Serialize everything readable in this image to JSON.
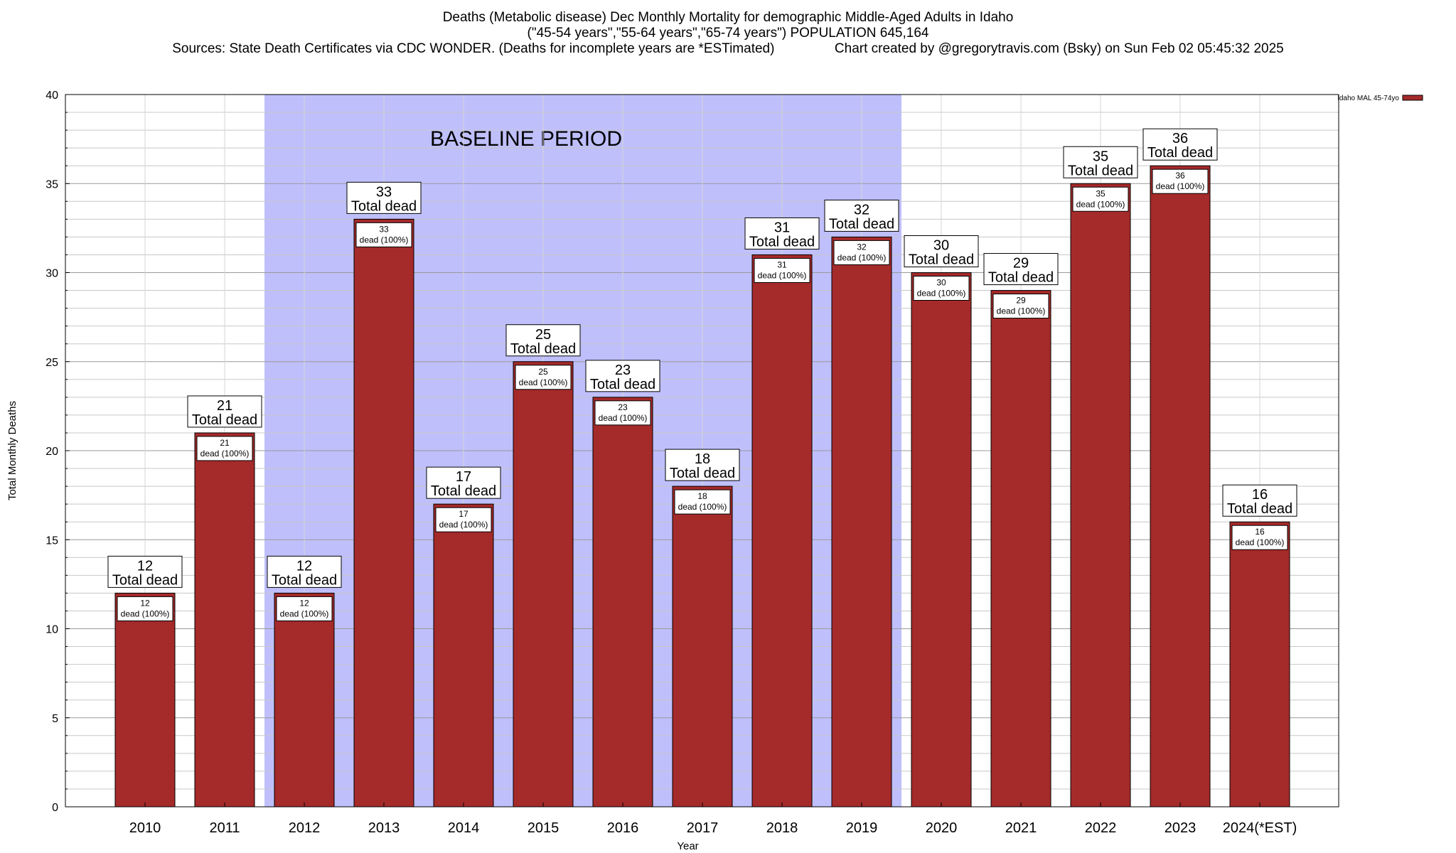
{
  "header": {
    "title_line1": "Deaths (Metabolic disease) Dec Monthly Mortality for demographic Middle-Aged Adults in Idaho",
    "title_line2": "(\"45-54 years\",\"55-64 years\",\"65-74 years\") POPULATION 645,164",
    "title_sources": "Sources: State Death Certificates via CDC WONDER. (Deaths for incomplete years are *ESTimated)",
    "title_credit": "Chart created by @gregorytravis.com (Bsky) on Sun Feb 02 05:45:32 2025"
  },
  "chart_data": {
    "type": "bar",
    "xlabel": "Year",
    "ylabel": "Total Monthly Deaths",
    "ylim": [
      0,
      40
    ],
    "yticks": [
      0,
      5,
      10,
      15,
      20,
      25,
      30,
      35,
      40
    ],
    "minor_grid_step": 1,
    "grid": true,
    "legend": {
      "placement": "top-right",
      "label": "Idaho MAL 45-74yo",
      "color": "#a52a2a"
    },
    "bar_color": "#a52a2a",
    "baseline_period": {
      "label": "BASELINE PERIOD",
      "start": "2012",
      "end": "2019",
      "color": "#bfbffc"
    },
    "categories": [
      "2010",
      "2011",
      "2012",
      "2013",
      "2014",
      "2015",
      "2016",
      "2017",
      "2018",
      "2019",
      "2020",
      "2021",
      "2022",
      "2023",
      "2024(*EST)"
    ],
    "series": [
      {
        "name": "Idaho MAL 45-74yo",
        "values": [
          12,
          21,
          12,
          33,
          17,
          25,
          23,
          18,
          31,
          32,
          30,
          29,
          35,
          36,
          16
        ]
      }
    ],
    "bar_label_top": "Total dead",
    "bar_label_inner": "dead (100%)"
  }
}
